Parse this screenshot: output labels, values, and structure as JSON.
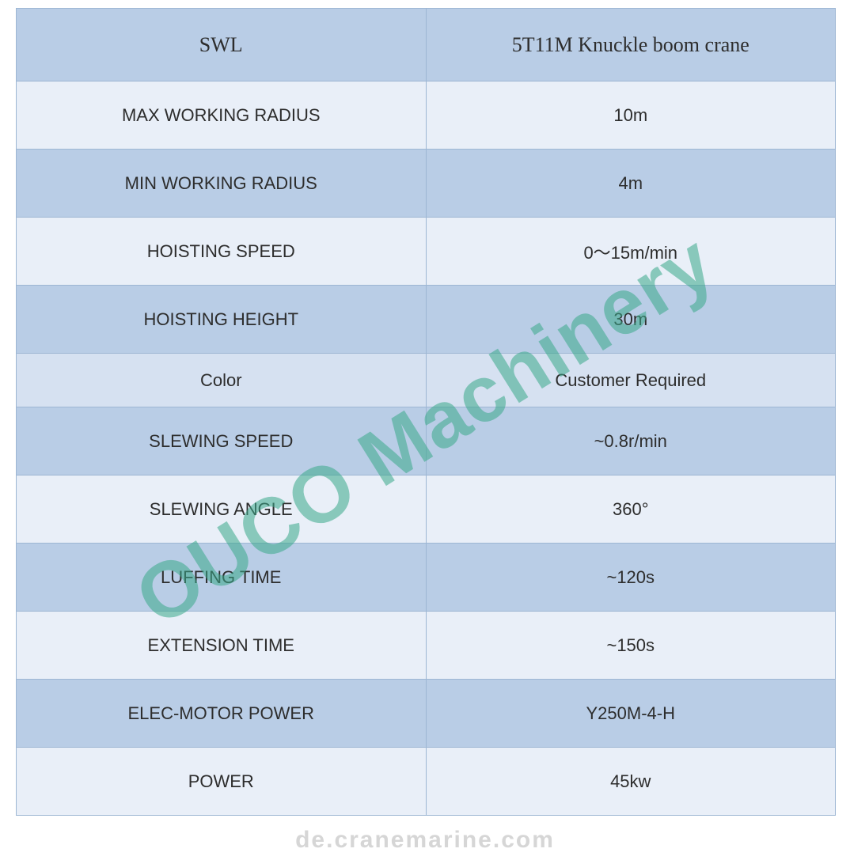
{
  "table": {
    "header_bg": "#b9cde6",
    "row_bg_a": "#e9eff8",
    "row_bg_b": "#b9cde6",
    "color_row_bg": "#d6e1f1",
    "border_color": "#9db6d3",
    "text_color": "#2d2d2d",
    "header_fontsize": 26,
    "body_fontsize": 22,
    "columns": [
      "SWL",
      "5T11M Knuckle boom crane"
    ],
    "rows": [
      {
        "label": "MAX WORKING RADIUS",
        "value": "10m",
        "variant": "a"
      },
      {
        "label": "MIN WORKING RADIUS",
        "value": "4m",
        "variant": "b"
      },
      {
        "label": "HOISTING SPEED",
        "value": "0～15m/min",
        "variant": "a"
      },
      {
        "label": "HOISTING HEIGHT",
        "value": "30m",
        "variant": "b"
      },
      {
        "label": "Color",
        "value": "Customer Required",
        "variant": "color"
      },
      {
        "label": "SLEWING SPEED",
        "value": "~0.8r/min",
        "variant": "b"
      },
      {
        "label": "SLEWING ANGLE",
        "value": "360°",
        "variant": "a"
      },
      {
        "label": "LUFFING TIME",
        "value": "~120s",
        "variant": "b"
      },
      {
        "label": "EXTENSION TIME",
        "value": "~150s",
        "variant": "a"
      },
      {
        "label": "ELEC-MOTOR POWER",
        "value": "Y250M-4-H",
        "variant": "b"
      },
      {
        "label": "POWER",
        "value": "45kw",
        "variant": "a"
      }
    ]
  },
  "watermark": {
    "text": "OUCO Machinery",
    "color": "#3aa98a",
    "opacity": 0.55,
    "fontsize": 100,
    "rotation_deg": -32
  },
  "footer": {
    "text": "de.cranemarine.com",
    "color": "#d6d6d6",
    "fontsize": 30
  }
}
